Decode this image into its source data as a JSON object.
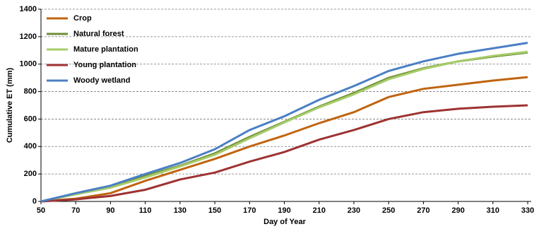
{
  "chart_data": {
    "type": "line",
    "x": [
      50,
      70,
      90,
      110,
      130,
      150,
      170,
      190,
      210,
      230,
      250,
      270,
      290,
      310,
      330
    ],
    "series": [
      {
        "name": "Crop",
        "color": "#c0640f",
        "values": [
          0,
          20,
          60,
          150,
          230,
          310,
          400,
          480,
          570,
          650,
          760,
          820,
          850,
          880,
          905
        ]
      },
      {
        "name": "Natural forest",
        "color": "#6e8e35",
        "values": [
          0,
          55,
          105,
          185,
          260,
          350,
          470,
          580,
          690,
          790,
          900,
          970,
          1020,
          1055,
          1085
        ]
      },
      {
        "name": "Mature plantation",
        "color": "#a6cc6a",
        "values": [
          0,
          52,
          100,
          175,
          255,
          340,
          460,
          575,
          685,
          780,
          890,
          965,
          1020,
          1060,
          1090
        ]
      },
      {
        "name": "Young plantation",
        "color": "#9e3232",
        "values": [
          0,
          15,
          40,
          85,
          160,
          210,
          290,
          360,
          450,
          520,
          600,
          650,
          675,
          690,
          700
        ]
      },
      {
        "name": "Woody  wetland",
        "color": "#4a7fc4",
        "values": [
          0,
          60,
          115,
          200,
          280,
          380,
          520,
          620,
          740,
          840,
          950,
          1020,
          1075,
          1115,
          1155
        ]
      }
    ],
    "xlabel": "Day of Year",
    "ylabel": "Cumulative ET (mm)",
    "xlim": [
      50,
      332
    ],
    "xticks": [
      50,
      70,
      90,
      110,
      130,
      150,
      170,
      190,
      210,
      230,
      250,
      270,
      290,
      310,
      330
    ],
    "ylim": [
      0,
      1400
    ],
    "yticks": [
      0,
      200,
      400,
      600,
      800,
      1000,
      1200,
      1400
    ],
    "grid": true,
    "legend": "upper left"
  }
}
